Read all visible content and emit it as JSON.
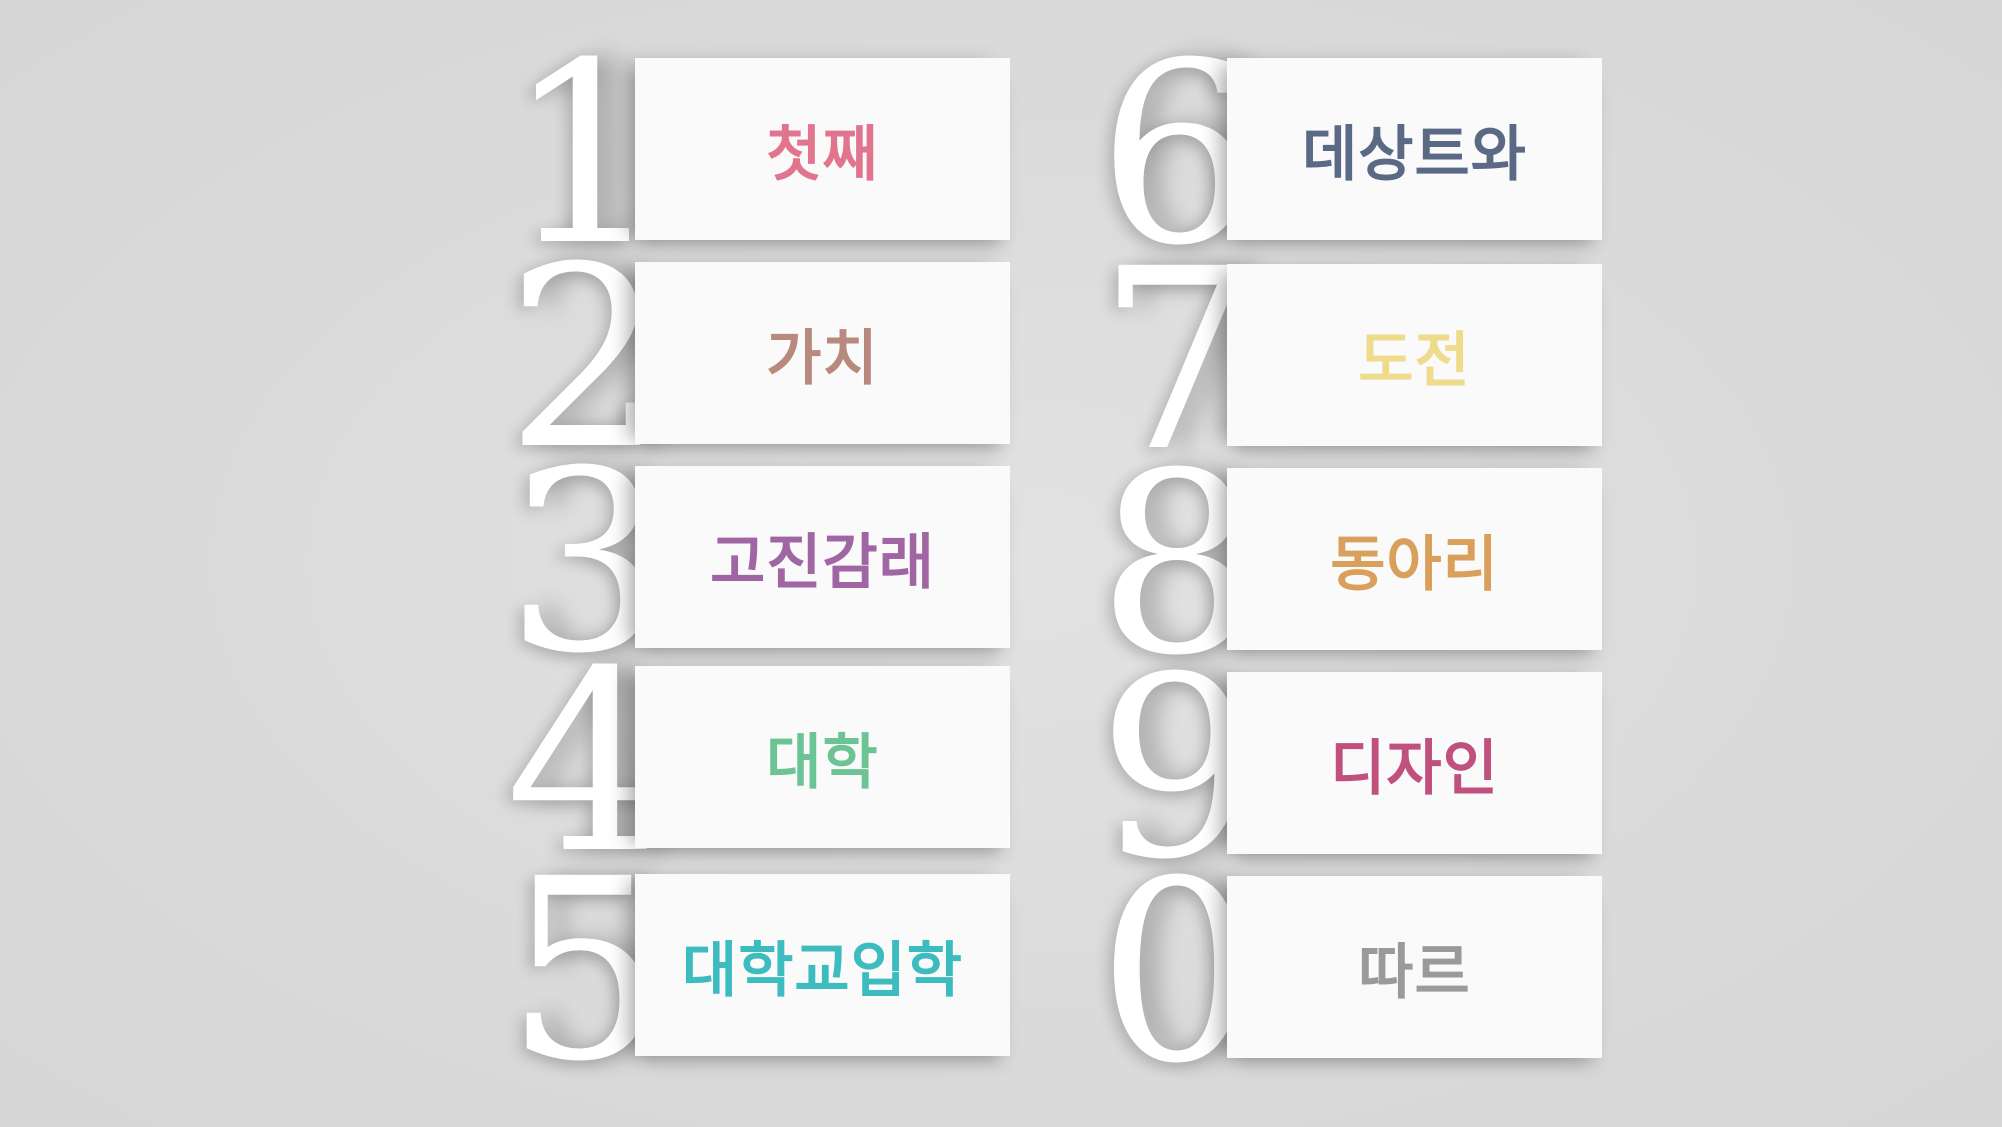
{
  "items": [
    {
      "number": "1",
      "label": "첫째",
      "color": "#e0758d"
    },
    {
      "number": "2",
      "label": "가치",
      "color": "#b88a7e"
    },
    {
      "number": "3",
      "label": "고진감래",
      "color": "#a066a3"
    },
    {
      "number": "4",
      "label": "대학",
      "color": "#6cc494"
    },
    {
      "number": "5",
      "label": "대학교입학",
      "color": "#3cbcbf"
    },
    {
      "number": "6",
      "label": "데상트와",
      "color": "#5a6a85"
    },
    {
      "number": "7",
      "label": "도전",
      "color": "#eedc8c"
    },
    {
      "number": "8",
      "label": "동아리",
      "color": "#d8a05a"
    },
    {
      "number": "9",
      "label": "디자인",
      "color": "#c0507e"
    },
    {
      "number": "0",
      "label": "따르",
      "color": "#9a9a9a"
    }
  ]
}
